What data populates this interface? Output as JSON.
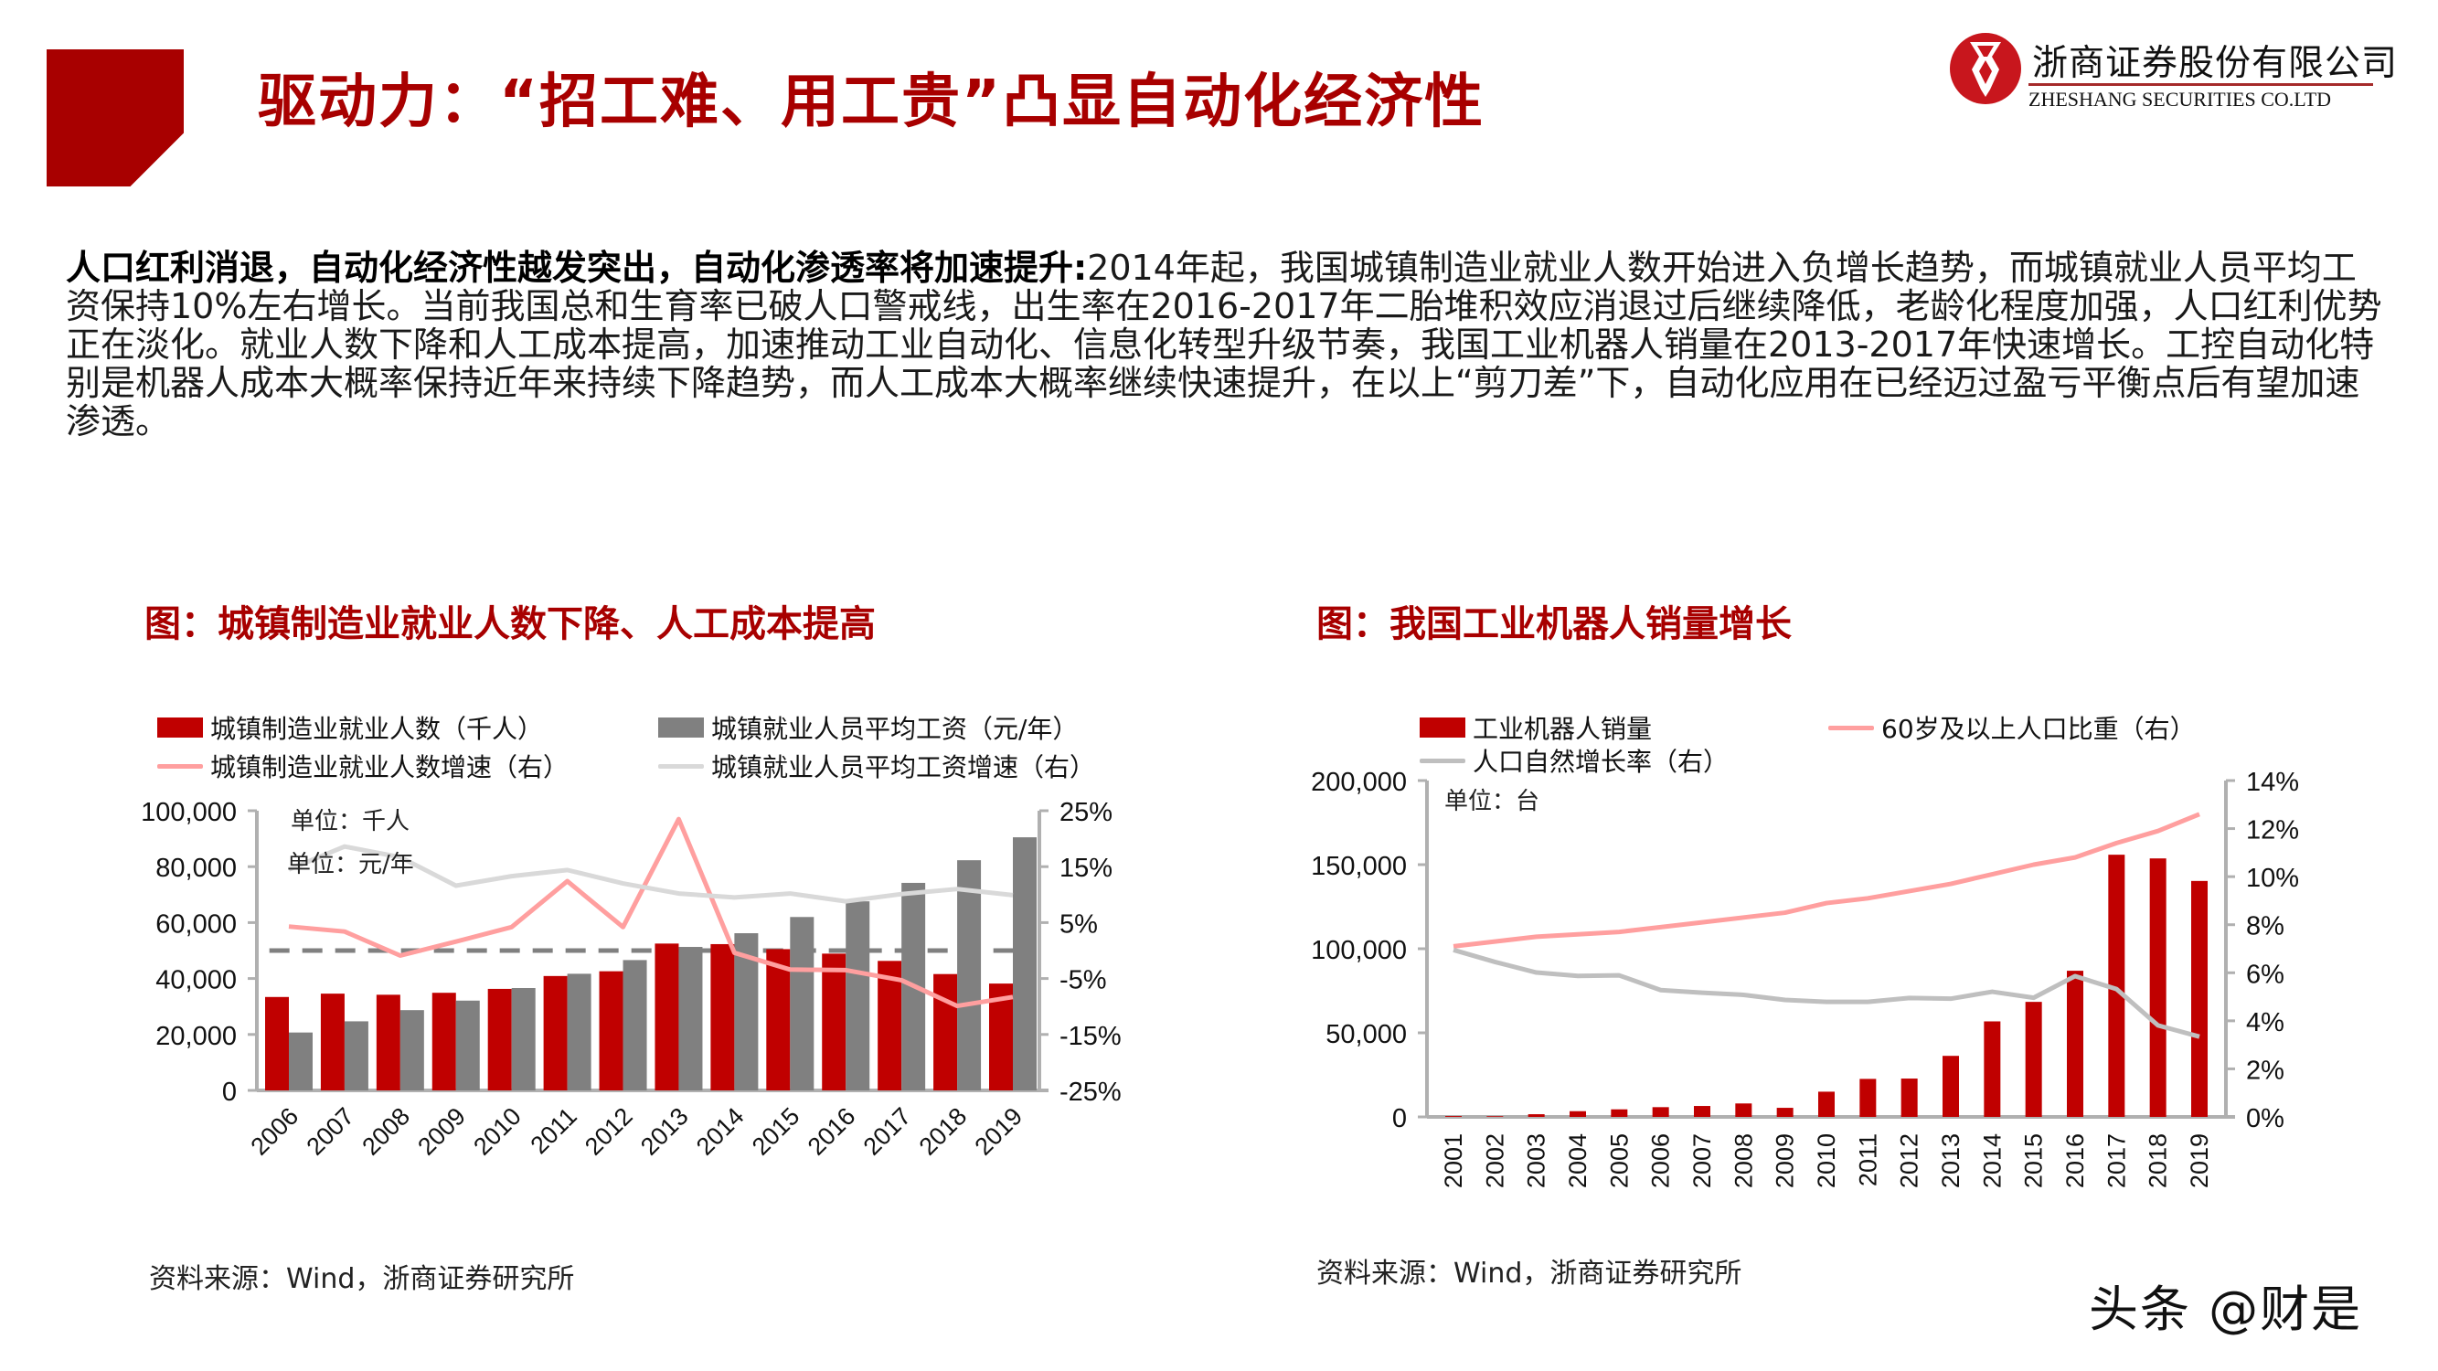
{
  "header": {
    "title": "驱动力：“招工难、用工贵”凸显自动化经济性",
    "logo": {
      "name_cn": "浙商证券股份有限公司",
      "name_en": "ZHESHANG SECURITIES CO.LTD"
    }
  },
  "intro": {
    "bold": "人口红利消退，自动化经济性越发突出，自动化渗透率将加速提升:",
    "body": "2014年起，我国城镇制造业就业人数开始进入负增长趋势，而城镇就业人员平均工资保持10%左右增长。当前我国总和生育率已破人口警戒线，出生率在2016-2017年二胎堆积效应消退过后继续降低，老龄化程度加强，人口红利优势正在淡化。就业人数下降和人工成本提高，加速推动工业自动化、信息化转型升级节奏，我国工业机器人销量在2013-2017年快速增长。工控自动化特别是机器人成本大概率保持近年来持续下降趋势，而人工成本大概率继续快速提升，在以上“剪刀差”下，自动化应用在已经迈过盈亏平衡点后有望加速渗透。"
  },
  "colors": {
    "brand_red": "#a80000",
    "bar_red": "#c00000",
    "bar_grey": "#808080",
    "line_pink": "#ff9f9f",
    "line_lightgrey": "#d9d9d9",
    "line_grey": "#bfbfbf",
    "axis": "#b0b0b0"
  },
  "chart_data": [
    {
      "type": "bar+line",
      "title": "图：城镇制造业就业人数下降、人工成本提高",
      "annotations": [
        "单位：千人",
        "单位：元/年"
      ],
      "legend": [
        {
          "label": "城镇制造业就业人数（千人）",
          "kind": "bar",
          "color": "#c00000"
        },
        {
          "label": "城镇就业人员平均工资（元/年）",
          "kind": "bar",
          "color": "#808080"
        },
        {
          "label": "城镇制造业就业人数增速（右）",
          "kind": "line",
          "color": "#ff9f9f"
        },
        {
          "label": "城镇就业人员平均工资增速（右）",
          "kind": "line",
          "color": "#d9d9d9"
        }
      ],
      "categories": [
        "2006",
        "2007",
        "2008",
        "2009",
        "2010",
        "2011",
        "2012",
        "2013",
        "2014",
        "2015",
        "2016",
        "2017",
        "2018",
        "2019"
      ],
      "series": [
        {
          "name": "城镇制造业就业人数（千人）",
          "axis": "left",
          "type": "bar",
          "values": [
            33400,
            34600,
            34200,
            34900,
            36300,
            40900,
            42600,
            52500,
            52300,
            50500,
            48900,
            46300,
            41600,
            38200
          ]
        },
        {
          "name": "城镇就业人员平均工资（元/年）",
          "axis": "left",
          "type": "bar",
          "values": [
            20700,
            24700,
            28700,
            32100,
            36600,
            41700,
            46600,
            51300,
            56200,
            62000,
            67600,
            74200,
            82300,
            90500
          ]
        },
        {
          "name": "城镇制造业就业人数增速（右）",
          "axis": "right",
          "type": "line",
          "values": [
            4.3,
            3.4,
            -0.9,
            1.6,
            4.2,
            12.4,
            4.2,
            23.5,
            -0.4,
            -3.4,
            -3.5,
            -5.3,
            -9.9,
            -8.3
          ]
        },
        {
          "name": "城镇就业人员平均工资增速（右）",
          "axis": "right",
          "type": "line",
          "values": [
            14.5,
            18.6,
            16.7,
            11.6,
            13.3,
            14.4,
            12.0,
            10.2,
            9.5,
            10.2,
            8.8,
            10.1,
            11.0,
            9.9
          ]
        }
      ],
      "reference_line": {
        "axis": "right",
        "value": 0,
        "style": "dashed",
        "color": "#808080"
      },
      "y_left": {
        "ticks": [
          "100,000",
          "80,000",
          "60,000",
          "40,000",
          "20,000",
          "0"
        ],
        "min": 0,
        "max": 100000
      },
      "y_right": {
        "ticks": [
          "25%",
          "15%",
          "5%",
          "-5%",
          "-15%",
          "-25%"
        ],
        "min": -25,
        "max": 25
      },
      "xlabel": "",
      "ylabel": "",
      "grid": false,
      "legend_position": "top",
      "source": "资料来源：Wind，浙商证券研究所"
    },
    {
      "type": "bar+line",
      "title": "图：我国工业机器人销量增长",
      "annotations": [
        "单位：台"
      ],
      "legend": [
        {
          "label": "工业机器人销量",
          "kind": "bar",
          "color": "#c00000"
        },
        {
          "label": "60岁及以上人口比重（右）",
          "kind": "line",
          "color": "#ff9f9f"
        },
        {
          "label": "人口自然增长率（右）",
          "kind": "line",
          "color": "#bfbfbf"
        }
      ],
      "categories": [
        "2001",
        "2002",
        "2003",
        "2004",
        "2005",
        "2006",
        "2007",
        "2008",
        "2009",
        "2010",
        "2011",
        "2012",
        "2013",
        "2014",
        "2015",
        "2016",
        "2017",
        "2018",
        "2019"
      ],
      "series": [
        {
          "name": "工业机器人销量",
          "axis": "left",
          "type": "bar",
          "values": [
            500,
            400,
            1600,
            3400,
            4500,
            5800,
            6500,
            8000,
            5400,
            15000,
            22600,
            22800,
            36300,
            56800,
            68400,
            86900,
            155900,
            153700,
            140300
          ]
        },
        {
          "name": "60岁及以上人口比重（右）",
          "axis": "right",
          "type": "line",
          "values": [
            7.1,
            7.3,
            7.5,
            7.6,
            7.7,
            7.9,
            8.1,
            8.3,
            8.5,
            8.9,
            9.1,
            9.4,
            9.7,
            10.1,
            10.5,
            10.8,
            11.4,
            11.9,
            12.6
          ]
        },
        {
          "name": "人口自然增长率（右）",
          "axis": "right",
          "type": "line",
          "values": [
            6.95,
            6.45,
            6.01,
            5.87,
            5.89,
            5.28,
            5.17,
            5.08,
            4.87,
            4.79,
            4.79,
            4.95,
            4.92,
            5.21,
            4.96,
            5.86,
            5.32,
            3.81,
            3.34
          ]
        }
      ],
      "y_left": {
        "ticks": [
          "200,000",
          "150,000",
          "100,000",
          "50,000",
          "0"
        ],
        "min": 0,
        "max": 200000
      },
      "y_right": {
        "ticks": [
          "14%",
          "12%",
          "10%",
          "8%",
          "6%",
          "4%",
          "2%",
          "0%"
        ],
        "min": 0,
        "max": 14
      },
      "xlabel": "",
      "ylabel": "",
      "grid": false,
      "legend_position": "top",
      "source": "资料来源：Wind，浙商证券研究所"
    }
  ],
  "watermark": "头条 @财是"
}
